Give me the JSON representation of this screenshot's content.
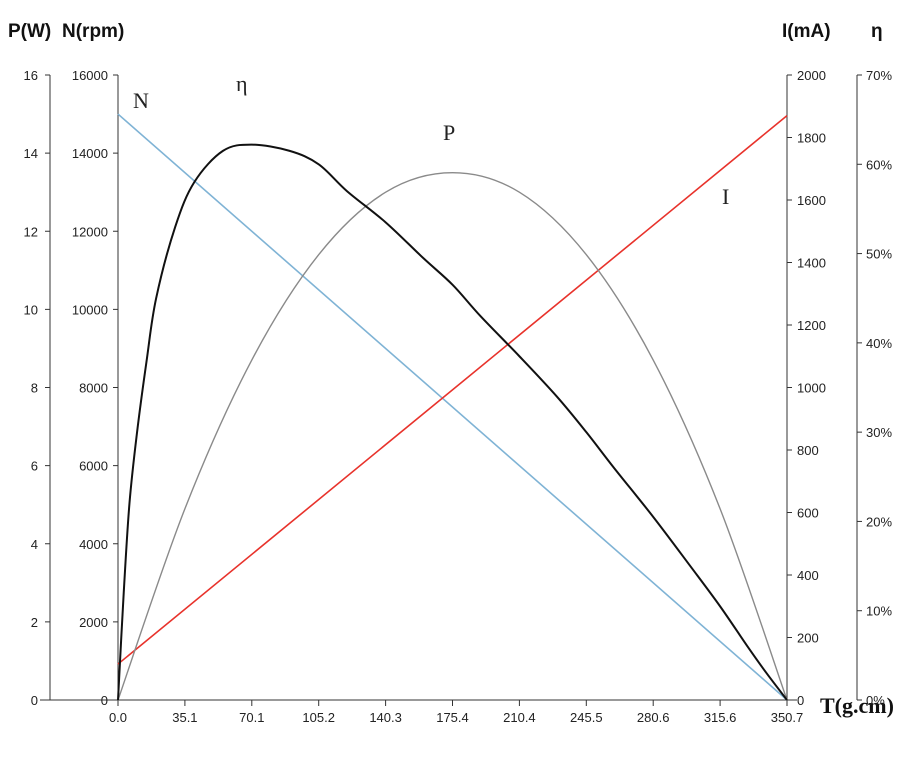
{
  "chart_data": {
    "type": "line",
    "axis_titles": {
      "left_p": "P(W)",
      "left_n": "N(rpm)",
      "right_i": "I(mA)",
      "right_eta": "η",
      "x": "T(g.cm)"
    },
    "x_ticks": [
      "0.0",
      "35.1",
      "70.1",
      "105.2",
      "140.3",
      "175.4",
      "210.4",
      "245.5",
      "280.6",
      "315.6",
      "350.7"
    ],
    "xlim": [
      0,
      350.7
    ],
    "axes": {
      "P": {
        "ylim": [
          0,
          16
        ],
        "ticks": [
          "0",
          "2",
          "4",
          "6",
          "8",
          "10",
          "12",
          "14",
          "16"
        ]
      },
      "N": {
        "ylim": [
          0,
          16000
        ],
        "ticks": [
          "0",
          "2000",
          "4000",
          "6000",
          "8000",
          "10000",
          "12000",
          "14000",
          "16000"
        ]
      },
      "I": {
        "ylim": [
          0,
          2000
        ],
        "ticks": [
          "0",
          "200",
          "400",
          "600",
          "800",
          "1000",
          "1200",
          "1400",
          "1600",
          "1800",
          "2000"
        ]
      },
      "eta": {
        "ylim": [
          0,
          70
        ],
        "ticks": [
          "0%",
          "10%",
          "20%",
          "30%",
          "40%",
          "50%",
          "60%",
          "70%"
        ]
      }
    },
    "series": [
      {
        "name": "N",
        "axis": "N",
        "color": "#7fb3d5",
        "x": [
          0,
          350.7
        ],
        "y": [
          15000,
          0
        ]
      },
      {
        "name": "I",
        "axis": "I",
        "color": "#e8322b",
        "x": [
          0,
          350.7
        ],
        "y": [
          115,
          1870
        ]
      },
      {
        "name": "P",
        "axis": "P",
        "color": "#8a8a8a",
        "x": [
          0,
          35.1,
          70.1,
          105.2,
          140.3,
          175.4,
          210.4,
          245.5,
          280.6,
          315.6,
          350.7
        ],
        "y": [
          0,
          4.9,
          8.7,
          11.4,
          13.0,
          13.5,
          13.0,
          11.4,
          8.7,
          4.9,
          0
        ]
      },
      {
        "name": "η",
        "axis": "eta",
        "color": "#111111",
        "x": [
          0,
          3,
          6,
          10,
          15,
          20,
          30,
          40,
          55,
          70,
          90,
          105.2,
          120,
          140.3,
          160,
          175.4,
          190,
          210.4,
          230,
          245.5,
          260,
          280.6,
          300,
          315.6,
          330,
          340,
          350.7
        ],
        "y": [
          0,
          12,
          22,
          30,
          38,
          45,
          53,
          58,
          61.5,
          62.2,
          61.5,
          60,
          57,
          53.5,
          49.5,
          46.5,
          43,
          38.5,
          34,
          30,
          26,
          20.5,
          15,
          10.5,
          6,
          3,
          0
        ]
      }
    ],
    "curve_labels": [
      "N",
      "η",
      "P",
      "I"
    ],
    "grid": false,
    "legend": "none"
  }
}
